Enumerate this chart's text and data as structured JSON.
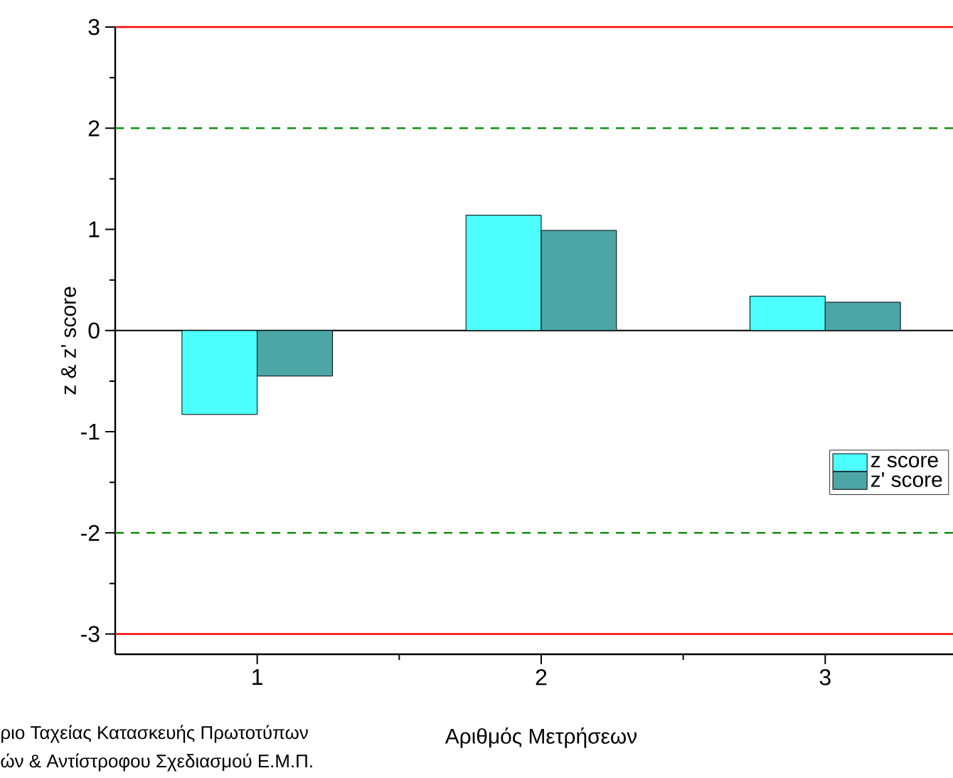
{
  "chart_data": {
    "type": "bar",
    "xlabel": "Αριθμός Μετρήσεων",
    "ylabel": "z & z' score",
    "categories": [
      "1",
      "2",
      "3"
    ],
    "series": [
      {
        "name": "z score",
        "color": "#4dffff",
        "values": [
          -0.83,
          1.14,
          0.34
        ]
      },
      {
        "name": "z' score",
        "color": "#4da6a6",
        "values": [
          -0.45,
          0.99,
          0.28
        ]
      }
    ],
    "ylim": [
      -3.2,
      3.0
    ],
    "yticks": [
      -3,
      -2,
      -1,
      0,
      1,
      2,
      3
    ],
    "ref_lines": [
      {
        "axis": "y",
        "value": 3,
        "color": "#ff0000",
        "line_style": "solid"
      },
      {
        "axis": "y",
        "value": 2,
        "color": "#109010",
        "line_style": "dashed"
      },
      {
        "axis": "y",
        "value": -2,
        "color": "#109010",
        "line_style": "dashed"
      },
      {
        "axis": "y",
        "value": -3,
        "color": "#ff0000",
        "line_style": "solid"
      }
    ],
    "legend": "right",
    "annotations": [
      "ριο Ταχείας Κατασκευής Πρωτοτύπων",
      "ών & Αντίστροφου Σχεδιασμού Ε.Μ.Π."
    ]
  }
}
